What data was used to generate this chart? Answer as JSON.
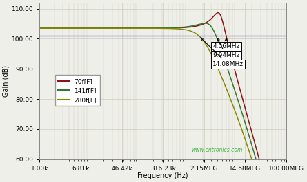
{
  "xlabel": "Frequency (Hz)",
  "ylabel": "Gain (dB)",
  "ylim": [
    60,
    112
  ],
  "yticks": [
    60,
    70,
    80,
    90,
    100,
    110
  ],
  "ytick_labels": [
    "60.00",
    "70.00",
    "80.00",
    "90.00",
    "100.00",
    "110.00"
  ],
  "xtick_vals": [
    1000,
    6810,
    46420,
    316230,
    2150000,
    14680000,
    100000000
  ],
  "xtick_labels": [
    "1.00k",
    "6.81k",
    "46.42k",
    "316.23k",
    "2.15MEG",
    "14.68MEG",
    "100.00MEG"
  ],
  "background_color": "#efefea",
  "grid_color": "#ccccbb",
  "line_color_70f": "#8b1414",
  "line_color_141f": "#2e7a2e",
  "line_color_280f": "#888800",
  "hline_color": "#3333bb",
  "hline_y": 101.0,
  "dc_gain_db": 103.5,
  "legend_labels": [
    "70f[F]",
    "141f[F]",
    "280f[F]"
  ],
  "annotation_labels": [
    "4.06MHz",
    "9.94MHz",
    "14.08MHz"
  ],
  "annotation_freqs": [
    4060000,
    9940000,
    14080000
  ],
  "watermark": "www.cntronics.com",
  "curve_params": [
    {
      "cf_fF": 70,
      "f_peak": 4500000,
      "peak_db": 106.8,
      "f_bw": 8000000,
      "Q": 1.8
    },
    {
      "cf_fF": 141,
      "f_peak": 3200000,
      "peak_db": 104.2,
      "f_bw": 12000000,
      "Q": 1.1
    },
    {
      "cf_fF": 280,
      "f_peak": 2200000,
      "peak_db": 103.6,
      "f_bw": 18000000,
      "Q": 0.7
    }
  ]
}
